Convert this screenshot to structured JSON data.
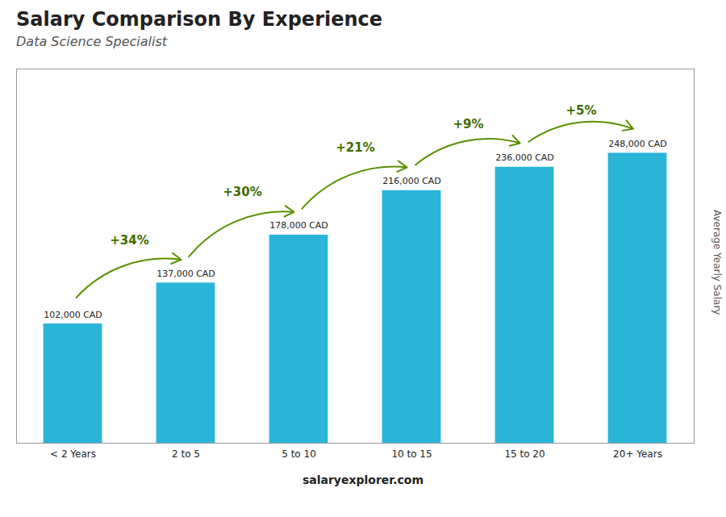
{
  "chart_data": {
    "type": "bar",
    "title": "Salary Comparison By Experience",
    "subtitle": "Data Science Specialist",
    "categories": [
      "< 2 Years",
      "2 to 5",
      "5 to 10",
      "10 to 15",
      "15 to 20",
      "20+ Years"
    ],
    "values": [
      102000,
      137000,
      178000,
      216000,
      236000,
      248000
    ],
    "value_labels": [
      "102,000 CAD",
      "137,000 CAD",
      "178,000 CAD",
      "216,000 CAD",
      "236,000 CAD",
      "248,000 CAD"
    ],
    "data_labels": true,
    "annotations": [
      "+34%",
      "+30%",
      "+21%",
      "+9%",
      "+5%"
    ],
    "ylabel": "Average Yearly Salary",
    "caption": "salaryexplorer.com",
    "color": "#2ab5d8",
    "ylim": [
      0,
      320000
    ],
    "tick_labels": "x",
    "grid": false
  }
}
